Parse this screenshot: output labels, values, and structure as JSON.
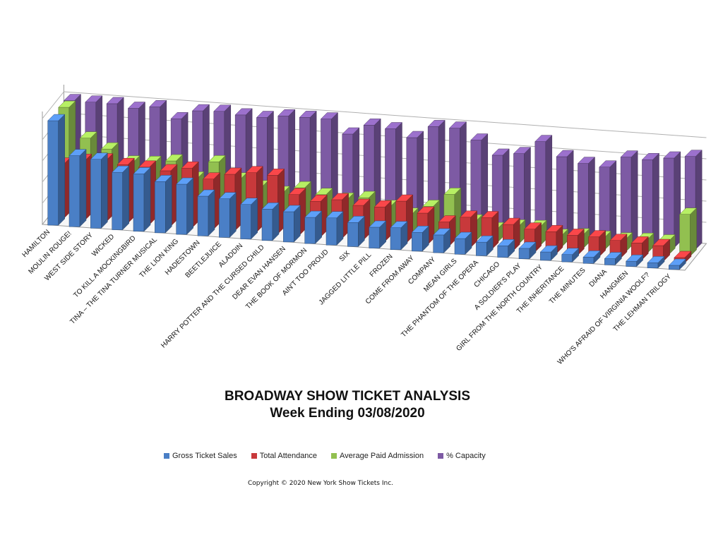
{
  "chart_data": {
    "type": "bar",
    "title": "BROADWAY SHOW TICKET ANALYSIS",
    "subtitle": "Week Ending 03/08/2020",
    "categories": [
      "HAMILTON",
      "MOULIN ROUGE!",
      "WEST SIDE STORY",
      "WICKED",
      "TO KILL A MOCKINGBIRD",
      "TINA – THE TINA TURNER MUSICAL",
      "THE LION KING",
      "HADESTOWN",
      "BEETLEJUICE",
      "ALADDIN",
      "HARRY POTTER AND THE CURSED CHILD",
      "DEAR EVAN HANSEN",
      "THE BOOK OF MORMON",
      "AIN'T TOO PROUD",
      "SIX",
      "JAGGED LITTLE PILL",
      "FROZEN",
      "COME FROM AWAY",
      "COMPANY",
      "MEAN GIRLS",
      "THE PHANTOM OF THE OPERA",
      "CHICAGO",
      "A SOLDIER'S PLAY",
      "GIRL FROM THE NORTH COUNTRY",
      "THE INHERITANCE",
      "THE MINUTES",
      "DIANA",
      "HANGMEN",
      "WHO'S AFRAID OF VIRGINIA WOOLF?",
      "THE LEHMAN TRILOGY"
    ],
    "series": [
      {
        "name": "Gross Ticket Sales",
        "color": "#4a7fc6",
        "values": [
          100,
          68,
          66,
          55,
          55,
          49,
          48,
          38,
          37,
          33,
          30,
          29,
          25,
          26,
          23,
          20,
          21,
          18,
          17,
          15,
          13,
          11,
          10,
          8,
          7,
          6,
          6,
          5,
          5,
          4
        ]
      },
      {
        "name": "Total Attendance",
        "color": "#c8393b",
        "values": [
          52,
          57,
          59,
          56,
          55,
          53,
          57,
          48,
          54,
          57,
          56,
          39,
          34,
          37,
          33,
          33,
          40,
          30,
          23,
          29,
          30,
          25,
          22,
          21,
          19,
          19,
          17,
          16,
          15,
          5
        ]
      },
      {
        "name": "Average Paid Admission",
        "color": "#92c050",
        "values": [
          100,
          72,
          63,
          52,
          53,
          56,
          41,
          58,
          43,
          37,
          33,
          39,
          34,
          31,
          34,
          27,
          21,
          30,
          43,
          19,
          13,
          17,
          18,
          11,
          13,
          12,
          12,
          13,
          13,
          40
        ]
      },
      {
        "name": "% Capacity",
        "color": "#7d5aa4",
        "values": [
          100,
          100,
          100,
          97,
          100,
          90,
          99,
          100,
          98,
          97,
          100,
          100,
          100,
          87,
          97,
          95,
          88,
          100,
          100,
          90,
          77,
          80,
          93,
          80,
          75,
          73,
          84,
          83,
          86,
          89
        ]
      }
    ],
    "legend_position": "bottom",
    "grid": true
  },
  "copyright": "Copyright © 2020 New York Show Tickets Inc."
}
